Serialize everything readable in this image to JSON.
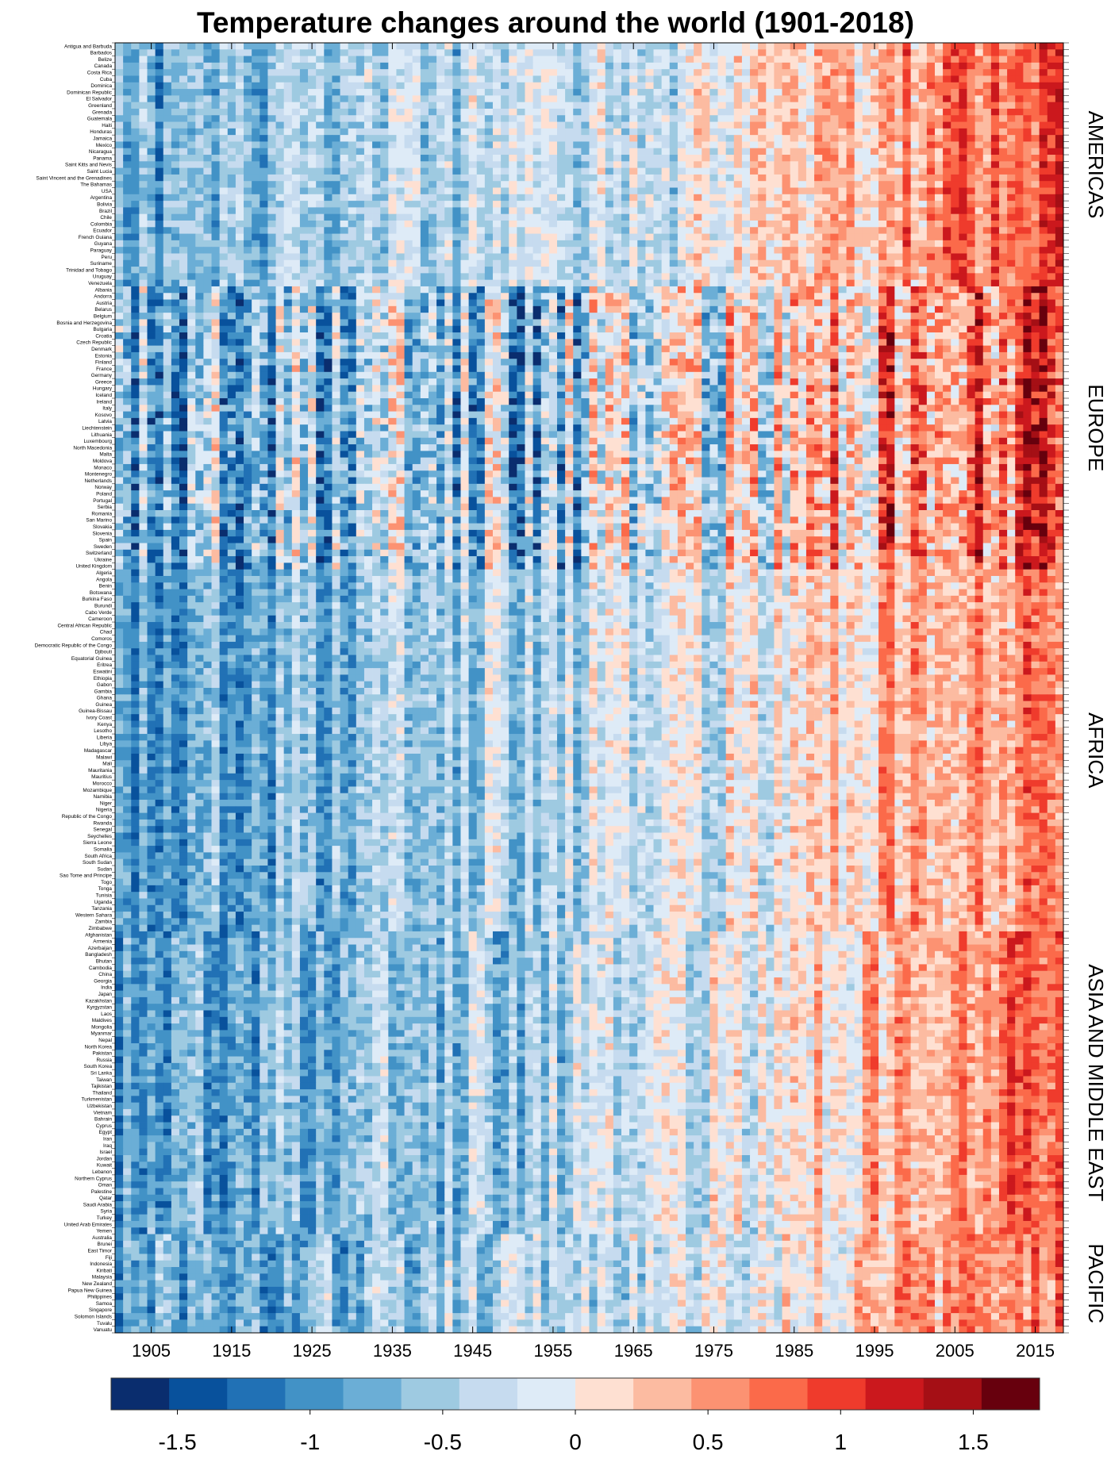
{
  "title": "Temperature changes around the world (1901-2018)",
  "chart_data": {
    "type": "heatmap",
    "title": "Temperature changes around the world (1901-2018)",
    "x_range": [
      1901,
      2018
    ],
    "x_ticks": [
      1905,
      1915,
      1925,
      1935,
      1945,
      1955,
      1965,
      1975,
      1985,
      1995,
      2005,
      2015
    ],
    "regions": [
      {
        "name": "AMERICAS",
        "first": "Antigua and Barbuda",
        "last": "Venezuela",
        "profile": [
          -0.7,
          -0.45,
          -0.2,
          0.0,
          0.35,
          0.8,
          1.2
        ]
      },
      {
        "name": "EUROPE",
        "first": "Albania",
        "last": "United Kingdom",
        "profile": [
          -0.6,
          -0.35,
          -0.4,
          0.0,
          0.3,
          1.0,
          1.5
        ]
      },
      {
        "name": "AFRICA",
        "first": "Algeria",
        "last": "Zimbabwe",
        "profile": [
          -0.8,
          -0.45,
          -0.25,
          -0.05,
          0.2,
          0.8,
          1.0
        ]
      },
      {
        "name": "ASIA AND MIDDLE EAST",
        "first": "Afghanistan",
        "last": "Yemen",
        "profile": [
          -0.7,
          -0.5,
          -0.35,
          -0.05,
          0.2,
          0.8,
          1.25
        ]
      },
      {
        "name": "PACIFIC",
        "first": "Australia",
        "last": "Vanuatu",
        "profile": [
          -0.7,
          -0.5,
          -0.3,
          -0.1,
          0.2,
          0.7,
          1.0
        ]
      }
    ],
    "countries": [
      "Antigua and Barbuda",
      "Barbados",
      "Belize",
      "Canada",
      "Costa Rica",
      "Cuba",
      "Dominica",
      "Dominican Republic",
      "El Salvador",
      "Greenland",
      "Grenada",
      "Guatemala",
      "Haiti",
      "Honduras",
      "Jamaica",
      "Mexico",
      "Nicaragua",
      "Panama",
      "Saint Kitts and Nevis",
      "Saint Lucia",
      "Saint Vincent and the Grenadines",
      "The Bahamas",
      "USA",
      "Argentina",
      "Bolivia",
      "Brazil",
      "Chile",
      "Colombia",
      "Ecuador",
      "French Guiana",
      "Guyana",
      "Paraguay",
      "Peru",
      "Suriname",
      "Trinidad and Tobago",
      "Uruguay",
      "Venezuela",
      "Albania",
      "Andorra",
      "Austria",
      "Belarus",
      "Belgium",
      "Bosnia and Herzegovina",
      "Bulgaria",
      "Croatia",
      "Czech Republic",
      "Denmark",
      "Estonia",
      "Finland",
      "France",
      "Germany",
      "Greece",
      "Hungary",
      "Iceland",
      "Ireland",
      "Italy",
      "Kosovo",
      "Latvia",
      "Liechtenstein",
      "Lithuania",
      "Luxembourg",
      "North Macedonia",
      "Malta",
      "Moldova",
      "Monaco",
      "Montenegro",
      "Netherlands",
      "Norway",
      "Poland",
      "Portugal",
      "Serbia",
      "Romania",
      "San Marino",
      "Slovakia",
      "Slovenia",
      "Spain",
      "Sweden",
      "Switzerland",
      "Ukraine",
      "United Kingdom",
      "Algeria",
      "Angola",
      "Benin",
      "Botswana",
      "Burkina Faso",
      "Burundi",
      "Cabo Verde",
      "Cameroon",
      "Central African Republic",
      "Chad",
      "Comoros",
      "Democratic Republic of the Congo",
      "Djibouti",
      "Equatorial Guinea",
      "Eritrea",
      "Eswatini",
      "Ethiopia",
      "Gabon",
      "Gambia",
      "Ghana",
      "Guinea",
      "Guinea-Bissau",
      "Ivory Coast",
      "Kenya",
      "Lesotho",
      "Liberia",
      "Libya",
      "Madagascar",
      "Malawi",
      "Mali",
      "Mauritania",
      "Mauritius",
      "Morocco",
      "Mozambique",
      "Namibia",
      "Niger",
      "Nigeria",
      "Republic of the Congo",
      "Rwanda",
      "Senegal",
      "Seychelles",
      "Sierra Leone",
      "Somalia",
      "South Africa",
      "South Sudan",
      "Sudan",
      "Sao Tome and Principe",
      "Togo",
      "Tonga",
      "Tunisia",
      "Uganda",
      "Tanzania",
      "Western Sahara",
      "Zambia",
      "Zimbabwe",
      "Afghanistan",
      "Armenia",
      "Azerbaijan",
      "Bangladesh",
      "Bhutan",
      "Cambodia",
      "China",
      "Georgia",
      "India",
      "Japan",
      "Kazakhstan",
      "Kyrgyzstan",
      "Laos",
      "Maldives",
      "Mongolia",
      "Myanmar",
      "Nepal",
      "North Korea",
      "Pakistan",
      "Russia",
      "South Korea",
      "Sri Lanka",
      "Taiwan",
      "Tajikistan",
      "Thailand",
      "Turkmenistan",
      "Uzbekistan",
      "Vietnam",
      "Bahrain",
      "Cyprus",
      "Egypt",
      "Iran",
      "Iraq",
      "Israel",
      "Jordan",
      "Kuwait",
      "Lebanon",
      "Northern Cyprus",
      "Oman",
      "Palestine",
      "Qatar",
      "Saudi Arabia",
      "Syria",
      "Turkey",
      "United Arab Emirates",
      "Yemen",
      "Australia",
      "Brunei",
      "East Timor",
      "Fiji",
      "Indonesia",
      "Kiribati",
      "Malaysia",
      "New Zealand",
      "Papua New Guinea",
      "Philippines",
      "Samoa",
      "Singapore",
      "Solomon Islands",
      "Tuvalu",
      "Vanuatu"
    ],
    "colorbar": {
      "min": -1.75,
      "max": 1.75,
      "step": 0.25,
      "ticks": [
        -1.5,
        -1,
        -0.5,
        0,
        0.5,
        1,
        1.5
      ],
      "tick_labels": [
        "-1.5",
        "-1",
        "-0.5",
        "0",
        "0.5",
        "1",
        "1.5"
      ],
      "colors": [
        "#0a2d6e",
        "#08519c",
        "#2171b5",
        "#4292c6",
        "#6baed6",
        "#9ecae1",
        "#c6dbef",
        "#deebf7",
        "#fee0d2",
        "#fcbba1",
        "#fc9272",
        "#fb6a4a",
        "#ef3b2c",
        "#cb181d",
        "#a50f15",
        "#67000d"
      ]
    }
  }
}
